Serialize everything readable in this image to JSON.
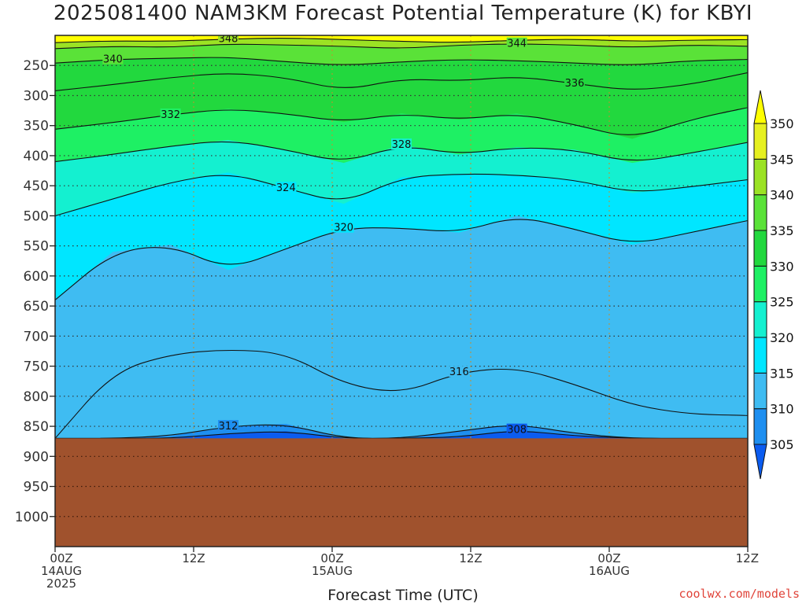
{
  "title": "2025081400 NAM3KM Forecast Potential Temperature (K) for KBYI",
  "credit": "coolwx.com/models",
  "chart_data": {
    "type": "heatmap",
    "title": "2025081400 NAM3KM Forecast Potential Temperature (K) for KBYI",
    "xlabel": "Forecast Time (UTC)",
    "ylabel": "",
    "y_ticks": [
      250,
      300,
      350,
      400,
      450,
      500,
      550,
      600,
      650,
      700,
      750,
      800,
      850,
      900,
      950,
      1000
    ],
    "y_range_hPa": [
      200,
      1050
    ],
    "x_ticks": [
      {
        "hour": 0,
        "lines": [
          "00Z",
          "14AUG",
          "2025"
        ]
      },
      {
        "hour": 12,
        "lines": [
          "12Z"
        ]
      },
      {
        "hour": 24,
        "lines": [
          "00Z",
          "15AUG"
        ]
      },
      {
        "hour": 36,
        "lines": [
          "12Z"
        ]
      },
      {
        "hour": 48,
        "lines": [
          "00Z",
          "16AUG"
        ]
      },
      {
        "hour": 60,
        "lines": [
          "12Z"
        ]
      }
    ],
    "x_range_hours": [
      0,
      60
    ],
    "surface_pressure_hPa": 870,
    "colorbar": {
      "levels": [
        305,
        310,
        315,
        320,
        325,
        330,
        335,
        340,
        345,
        350
      ],
      "colors": [
        "#0b5cf0",
        "#1e8ff0",
        "#3fbcf2",
        "#00e6ff",
        "#14f0d0",
        "#1ef064",
        "#22d83e",
        "#5ae238",
        "#9be224",
        "#e6f020",
        "#ffff00"
      ]
    },
    "contours": [
      {
        "value": 348,
        "label": "348",
        "pressure": [
          212,
          209,
          210,
          206,
          204,
          207,
          210,
          212,
          208,
          206,
          210,
          208,
          207
        ]
      },
      {
        "value": 344,
        "label": "344",
        "pressure": [
          222,
          218,
          220,
          214,
          216,
          218,
          222,
          216,
          214,
          216,
          220,
          216,
          218
        ]
      },
      {
        "value": 340,
        "label": "340",
        "pressure": [
          246,
          240,
          238,
          236,
          244,
          250,
          244,
          240,
          242,
          246,
          250,
          242,
          240
        ]
      },
      {
        "value": 336,
        "label": "336",
        "pressure": [
          292,
          282,
          270,
          262,
          270,
          292,
          272,
          276,
          268,
          280,
          292,
          282,
          262
        ]
      },
      {
        "value": 332,
        "label": "332",
        "pressure": [
          356,
          345,
          332,
          322,
          330,
          344,
          330,
          340,
          330,
          348,
          372,
          340,
          320
        ]
      },
      {
        "value": 328,
        "label": "328",
        "pressure": [
          410,
          398,
          384,
          374,
          390,
          412,
          382,
          398,
          386,
          390,
          412,
          396,
          378
        ]
      },
      {
        "value": 324,
        "label": "324",
        "pressure": [
          500,
          472,
          444,
          428,
          454,
          480,
          436,
          430,
          432,
          440,
          462,
          452,
          440
        ]
      },
      {
        "value": 320,
        "label": "320",
        "pressure": [
          640,
          560,
          548,
          590,
          555,
          520,
          520,
          528,
          500,
          522,
          548,
          528,
          508
        ]
      },
      {
        "value": 316,
        "label": "316",
        "pressure": [
          870,
          760,
          730,
          722,
          728,
          780,
          796,
          760,
          752,
          780,
          815,
          830,
          832
        ]
      },
      {
        "value": 312,
        "label": "312",
        "pressure": [
          870,
          870,
          866,
          850,
          846,
          870,
          870,
          858,
          846,
          862,
          870,
          870,
          870
        ]
      },
      {
        "value": 308,
        "label": "308",
        "pressure": [
          870,
          870,
          870,
          862,
          858,
          870,
          870,
          868,
          856,
          866,
          870,
          870,
          870
        ]
      }
    ],
    "contour_hours": [
      0,
      5,
      10,
      15,
      20,
      25,
      30,
      35,
      40,
      45,
      50,
      55,
      60
    ],
    "grid": true
  }
}
